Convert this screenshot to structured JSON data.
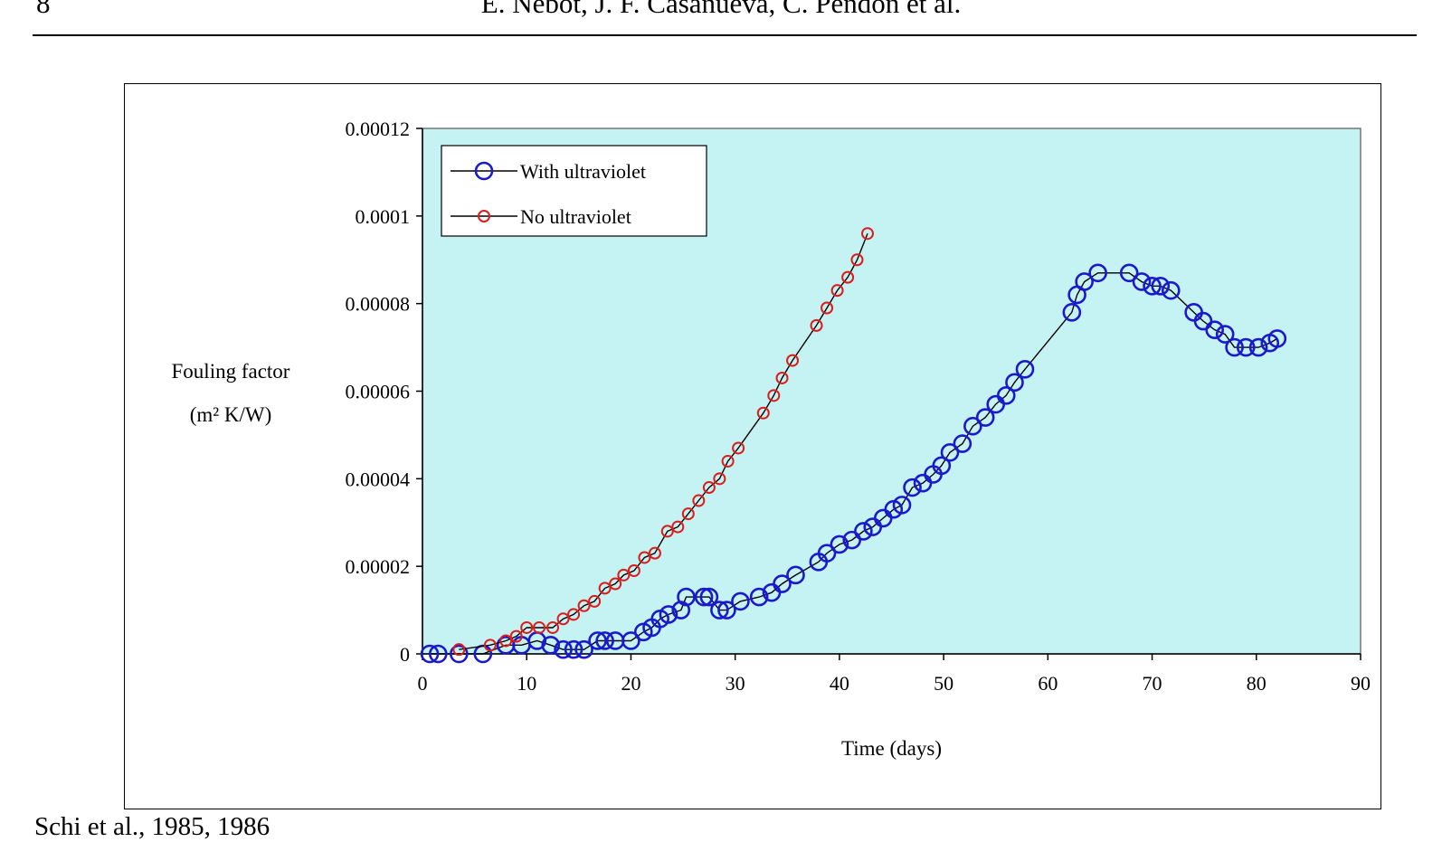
{
  "page": {
    "page_number": "8",
    "running_head": "E. Nebot, J. F. Casanueva, C. Pendón et al.",
    "caption_fragment": "Schi et al., 1985, 1986"
  },
  "colors": {
    "plot_background": "#c5f2f2",
    "with_uv_marker": "#1a1acc",
    "no_uv_marker": "#dd1c1c",
    "line": "#000000"
  },
  "chart_data": {
    "type": "line",
    "title": "",
    "xlabel": "Time (days)",
    "ylabel_line1": "Fouling factor",
    "ylabel_line2": "(m² K/W)",
    "xlim": [
      0,
      90
    ],
    "ylim": [
      0,
      0.00012
    ],
    "x_ticks": [
      0,
      10,
      20,
      30,
      40,
      50,
      60,
      70,
      80,
      90
    ],
    "x_tick_labels": [
      "0",
      "10",
      "20",
      "30",
      "40",
      "50",
      "60",
      "70",
      "80",
      "90"
    ],
    "y_ticks": [
      0,
      2e-05,
      4e-05,
      6e-05,
      8e-05,
      0.0001,
      0.00012
    ],
    "y_tick_labels": [
      "0",
      "0.00002",
      "0.00004",
      "0.00006",
      "0.00008",
      "0.0001",
      "0.00012"
    ],
    "grid": false,
    "legend_position": "top-left",
    "series": [
      {
        "name": "With ultraviolet",
        "marker": "circle-large",
        "x": [
          0.7,
          1.5,
          3.5,
          5.8,
          8,
          9.5,
          11,
          12.3,
          13.5,
          14.5,
          15.5,
          16.8,
          17.5,
          18.5,
          20,
          21.2,
          22,
          22.8,
          23.6,
          24.8,
          25.3,
          27,
          27.5,
          28.5,
          29.2,
          30.5,
          32.3,
          33.5,
          34.5,
          35.8,
          38,
          38.8,
          40,
          41.2,
          42.3,
          43.2,
          44.2,
          45.2,
          46,
          47,
          48,
          49,
          49.8,
          50.6,
          51.8,
          52.8,
          54,
          55,
          56,
          56.8,
          57.8,
          62.3,
          62.8,
          63.5,
          64.8,
          67.8,
          69,
          70,
          70.8,
          71.8,
          74,
          74.9,
          76,
          77,
          77.9,
          79,
          80.2,
          81.3,
          82
        ],
        "y": [
          0,
          0,
          0,
          0,
          2e-06,
          2e-06,
          3e-06,
          2e-06,
          1e-06,
          1e-06,
          1e-06,
          3e-06,
          3e-06,
          3e-06,
          3e-06,
          5e-06,
          6e-06,
          8e-06,
          9e-06,
          1e-05,
          1.3e-05,
          1.3e-05,
          1.3e-05,
          1e-05,
          1e-05,
          1.2e-05,
          1.3e-05,
          1.4e-05,
          1.6e-05,
          1.8e-05,
          2.1e-05,
          2.3e-05,
          2.5e-05,
          2.6e-05,
          2.8e-05,
          2.9e-05,
          3.1e-05,
          3.3e-05,
          3.4e-05,
          3.8e-05,
          3.9e-05,
          4.1e-05,
          4.3e-05,
          4.6e-05,
          4.8e-05,
          5.2e-05,
          5.4e-05,
          5.7e-05,
          5.9e-05,
          6.2e-05,
          6.5e-05,
          7.8e-05,
          8.2e-05,
          8.5e-05,
          8.7e-05,
          8.7e-05,
          8.5e-05,
          8.4e-05,
          8.4e-05,
          8.3e-05,
          7.8e-05,
          7.6e-05,
          7.4e-05,
          7.3e-05,
          7e-05,
          7e-05,
          7e-05,
          7.1e-05,
          7.2e-05
        ]
      },
      {
        "name": "No ultraviolet",
        "marker": "circle-small",
        "x": [
          3.5,
          6.5,
          8,
          9,
          10,
          11.2,
          12.5,
          13.5,
          14.5,
          15.5,
          16.5,
          17.5,
          18.5,
          19.3,
          20.3,
          21.3,
          22.3,
          23.5,
          24.5,
          25.5,
          26.5,
          27.5,
          28.5,
          29.3,
          30.3,
          32.7,
          33.7,
          34.5,
          35.5,
          37.8,
          38.8,
          39.8,
          40.8,
          41.7,
          42.7
        ],
        "y": [
          1e-06,
          2e-06,
          3e-06,
          4e-06,
          6e-06,
          6e-06,
          6e-06,
          8e-06,
          9e-06,
          1.1e-05,
          1.2e-05,
          1.5e-05,
          1.6e-05,
          1.8e-05,
          1.9e-05,
          2.2e-05,
          2.3e-05,
          2.8e-05,
          2.9e-05,
          3.2e-05,
          3.5e-05,
          3.8e-05,
          4e-05,
          4.4e-05,
          4.7e-05,
          5.5e-05,
          5.9e-05,
          6.3e-05,
          6.7e-05,
          7.5e-05,
          7.9e-05,
          8.3e-05,
          8.6e-05,
          9e-05,
          9.6e-05
        ]
      }
    ]
  }
}
